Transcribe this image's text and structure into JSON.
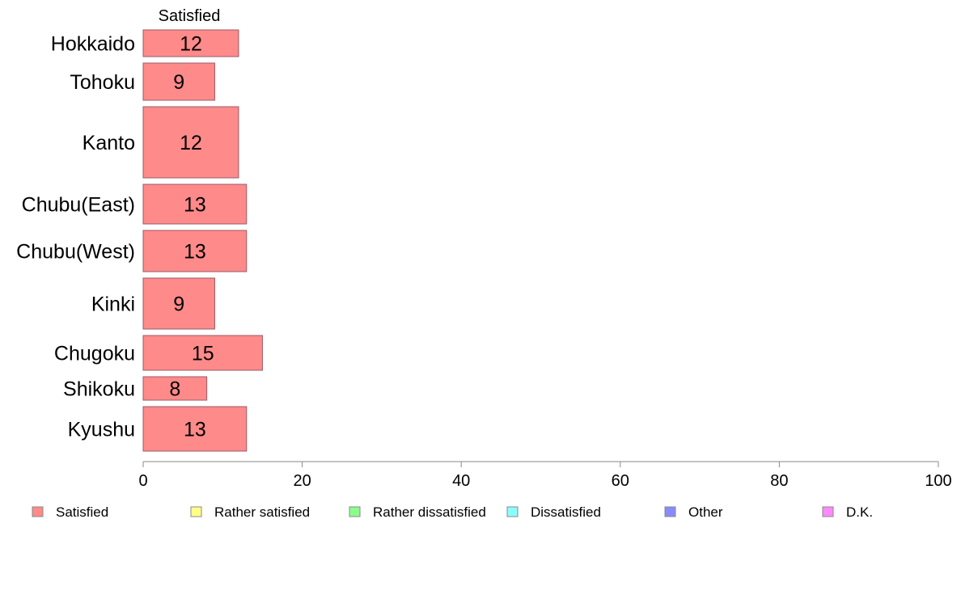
{
  "chart_data": {
    "type": "bar",
    "orientation": "horizontal",
    "stacked": true,
    "column_header": "Satisfied",
    "categories": [
      "Hokkaido",
      "Tohoku",
      "Kanto",
      "Chubu(East)",
      "Chubu(West)",
      "Kinki",
      "Chugoku",
      "Shikoku",
      "Kyushu"
    ],
    "series": [
      {
        "name": "Satisfied",
        "values": [
          12,
          9,
          12,
          13,
          13,
          9,
          15,
          8,
          13
        ],
        "color": "#ff8a8a"
      }
    ],
    "data_labels": [
      "12",
      "9",
      "12",
      "13",
      "13",
      "9",
      "15",
      "8",
      "13"
    ],
    "xlim": [
      0,
      100
    ],
    "xticks": [
      0,
      20,
      40,
      60,
      80,
      100
    ],
    "tick_labels": [
      "0",
      "20",
      "40",
      "60",
      "80",
      "100"
    ],
    "grid": false,
    "legend": {
      "placement": "bottom",
      "entries": [
        {
          "label": "Satisfied",
          "color": "#ff8a8a"
        },
        {
          "label": "Rather satisfied",
          "color": "#ffff8a"
        },
        {
          "label": "Rather dissatisfied",
          "color": "#8aff8a"
        },
        {
          "label": "Dissatisfied",
          "color": "#8affff"
        },
        {
          "label": "Other",
          "color": "#8a8aff"
        },
        {
          "label": "D.K.",
          "color": "#ff8aff"
        }
      ]
    }
  }
}
